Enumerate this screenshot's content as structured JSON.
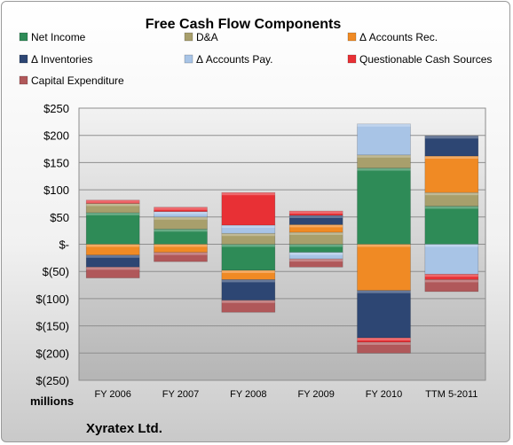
{
  "chart_data": {
    "type": "bar",
    "stacked": true,
    "title": "Free Cash Flow Components",
    "categories": [
      "FY 2006",
      "FY 2007",
      "FY 2008",
      "FY 2009",
      "FY 2010",
      "TTM 5-2011"
    ],
    "unit_label": "millions",
    "ylim": [
      -250,
      250
    ],
    "yticks": [
      250,
      200,
      150,
      100,
      50,
      0,
      -50,
      -100,
      -150,
      -200,
      -250
    ],
    "ytick_labels": [
      "$250",
      "$200",
      "$150",
      "$100",
      "$50",
      "$-",
      "$(50)",
      "$(100)",
      "$(150)",
      "$(200)",
      "$(250)"
    ],
    "grid": true,
    "legend_position": "top",
    "series": [
      {
        "name": "Net Income",
        "color": "#2e8b57",
        "values": [
          58,
          28,
          -48,
          -15,
          140,
          70
        ]
      },
      {
        "name": "D&A",
        "color": "#a89f6c",
        "values": [
          17,
          22,
          20,
          22,
          24,
          25
        ]
      },
      {
        "name": "Δ Accounts Rec.",
        "color": "#f08a24",
        "values": [
          -20,
          -15,
          -17,
          14,
          -85,
          67
        ]
      },
      {
        "name": "Δ Inventories",
        "color": "#2d4673",
        "values": [
          -22,
          0,
          -38,
          17,
          -87,
          37
        ]
      },
      {
        "name": "Δ Accounts Pay.",
        "color": "#a8c4e6",
        "values": [
          0,
          10,
          15,
          -12,
          57,
          -55
        ]
      },
      {
        "name": "Questionable Cash Sources",
        "color": "#e83035",
        "values": [
          6,
          8,
          60,
          8,
          -8,
          -10
        ]
      },
      {
        "name": "Capital Expenditure",
        "color": "#b0585a",
        "values": [
          -20,
          -17,
          -22,
          -15,
          -20,
          -22
        ]
      }
    ]
  },
  "footer": {
    "company": "Xyratex Ltd."
  }
}
